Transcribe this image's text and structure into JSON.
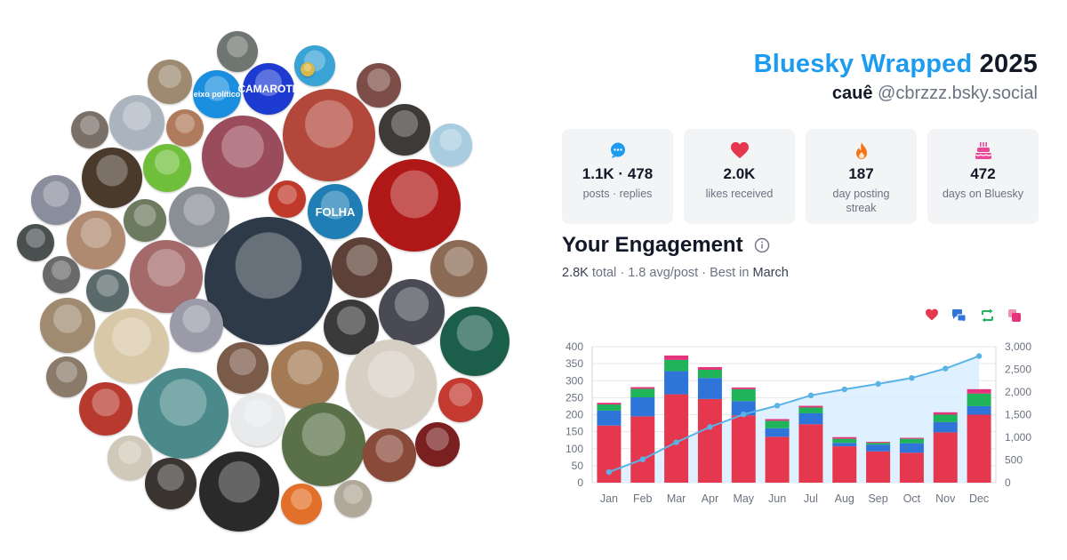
{
  "header": {
    "brand": "Bluesky Wrapped",
    "year": "2025",
    "display_name": "cauê",
    "handle": "@cbrzzz.bsky.social"
  },
  "stats": [
    {
      "icon": "chat-bubble-icon",
      "color": "#1d9bf0",
      "value": "1.1K · 478",
      "label": "posts · replies"
    },
    {
      "icon": "heart-icon",
      "color": "#e5384f",
      "value": "2.0K",
      "label": "likes received"
    },
    {
      "icon": "flame-icon",
      "color": "#f97316",
      "value": "187",
      "label": "day posting streak"
    },
    {
      "icon": "cake-icon",
      "color": "#ec4899",
      "value": "472",
      "label": "days on Bluesky"
    }
  ],
  "engagement": {
    "title": "Your Engagement",
    "total": "2.8K",
    "total_label": "total",
    "sep1": "·",
    "avg": "1.8 avg/post",
    "sep2": "·",
    "best_prefix": "Best in",
    "best_month": "March"
  },
  "legend": [
    {
      "icon": "heart-icon",
      "color": "#e5384f"
    },
    {
      "icon": "reply-icon",
      "color": "#2f74d9"
    },
    {
      "icon": "repost-icon",
      "color": "#1fb45a"
    },
    {
      "icon": "quote-icon",
      "color": "#e5347c"
    }
  ],
  "avatars": [
    {
      "label": "",
      "bg": "#6f7672",
      "fg": "#ffffff"
    },
    {
      "label": "",
      "bg": "#3aa3d6",
      "fg": "#ffffff"
    },
    {
      "label": "",
      "bg": "#9d8a70",
      "fg": "#ffffff"
    },
    {
      "label": "eixo político",
      "bg": "#1a8fe0",
      "fg": "#ffffff"
    },
    {
      "label": "CAMAROTE",
      "bg": "#1d3bd1",
      "fg": "#ffffff"
    },
    {
      "label": "",
      "bg": "#7d4e48",
      "fg": "#ffffff"
    },
    {
      "label": "",
      "bg": "#7a7068",
      "fg": "#ffffff"
    },
    {
      "label": "",
      "bg": "#aab4bf",
      "fg": "#ffffff"
    },
    {
      "label": "",
      "bg": "#b07a5c",
      "fg": "#ffffff"
    },
    {
      "label": "",
      "bg": "#b3473a",
      "fg": "#ffffff"
    },
    {
      "label": "",
      "bg": "#3d3a38",
      "fg": "#ffffff"
    },
    {
      "label": "",
      "bg": "#a9cde0",
      "fg": "#ffffff"
    },
    {
      "label": "",
      "bg": "#9a4b5c",
      "fg": "#ffffff"
    },
    {
      "label": "",
      "bg": "#4a3a2c",
      "fg": "#ffffff"
    },
    {
      "label": "",
      "bg": "#6fbf3a",
      "fg": "#ffffff"
    },
    {
      "label": "",
      "bg": "#b01818",
      "fg": "#ffffff"
    },
    {
      "label": "",
      "bg": "#8a8d9c",
      "fg": "#ffffff"
    },
    {
      "label": "",
      "bg": "#6c7a60",
      "fg": "#ffffff"
    },
    {
      "label": "",
      "bg": "#c0392b",
      "fg": "#ffffff"
    },
    {
      "label": "",
      "bg": "#8a8f96",
      "fg": "#ffffff"
    },
    {
      "label": "FOLHA",
      "bg": "#1f7fb5",
      "fg": "#ffffff"
    },
    {
      "label": "",
      "bg": "#b08a70",
      "fg": "#ffffff"
    },
    {
      "label": "",
      "bg": "#4a5050",
      "fg": "#ffffff"
    },
    {
      "label": "",
      "bg": "#5d4037",
      "fg": "#ffffff"
    },
    {
      "label": "",
      "bg": "#a46a6a",
      "fg": "#ffffff"
    },
    {
      "label": "",
      "bg": "#2e3a47",
      "fg": "#ffffff"
    },
    {
      "label": "",
      "bg": "#8b6b55",
      "fg": "#ffffff"
    },
    {
      "label": "",
      "bg": "#6a6a6a",
      "fg": "#ffffff"
    },
    {
      "label": "",
      "bg": "#5a6a6a",
      "fg": "#ffffff"
    },
    {
      "label": "",
      "bg": "#4a4a55",
      "fg": "#ffffff"
    },
    {
      "label": "",
      "bg": "#a08a70",
      "fg": "#ffffff"
    },
    {
      "label": "",
      "bg": "#d8c8a8",
      "fg": "#ffffff"
    },
    {
      "label": "",
      "bg": "#9a9aa8",
      "fg": "#ffffff"
    },
    {
      "label": "",
      "bg": "#3a3a3a",
      "fg": "#ffffff"
    },
    {
      "label": "",
      "bg": "#1b5e4a",
      "fg": "#ffffff"
    },
    {
      "label": "",
      "bg": "#7a5a48",
      "fg": "#ffffff"
    },
    {
      "label": "",
      "bg": "#a47a55",
      "fg": "#ffffff"
    },
    {
      "label": "",
      "bg": "#d8cfc4",
      "fg": "#ffffff"
    },
    {
      "label": "",
      "bg": "#8a7a6a",
      "fg": "#ffffff"
    },
    {
      "label": "",
      "bg": "#b83a2e",
      "fg": "#ffffff"
    },
    {
      "label": "",
      "bg": "#4a8a8a",
      "fg": "#ffffff"
    },
    {
      "label": "",
      "bg": "#e8eaec",
      "fg": "#ffffff"
    },
    {
      "label": "",
      "bg": "#5a7048",
      "fg": "#ffffff"
    },
    {
      "label": "",
      "bg": "#c43a30",
      "fg": "#ffffff"
    },
    {
      "label": "",
      "bg": "#d0c8b8",
      "fg": "#ffffff"
    },
    {
      "label": "",
      "bg": "#8a4a3a",
      "fg": "#ffffff"
    },
    {
      "label": "",
      "bg": "#7a2020",
      "fg": "#ffffff"
    },
    {
      "label": "",
      "bg": "#3a3530",
      "fg": "#ffffff"
    },
    {
      "label": "",
      "bg": "#2a2a2a",
      "fg": "#ffffff"
    },
    {
      "label": "",
      "bg": "#e3702a",
      "fg": "#ffffff"
    },
    {
      "label": "",
      "bg": "#b0a898",
      "fg": "#ffffff"
    },
    {
      "label": "",
      "bg": "#a08f7a",
      "fg": "#ffffff"
    },
    {
      "label": "",
      "bg": "#d8b84a",
      "fg": "#ffffff"
    }
  ],
  "chart_data": {
    "type": "bar",
    "stacked": true,
    "categories": [
      "Jan",
      "Feb",
      "Mar",
      "Apr",
      "May",
      "Jun",
      "Jul",
      "Aug",
      "Sep",
      "Oct",
      "Nov",
      "Dec"
    ],
    "series": [
      {
        "color": "#e5384f",
        "values": [
          168,
          195,
          260,
          246,
          198,
          135,
          172,
          107,
          92,
          88,
          148,
          200
        ]
      },
      {
        "color": "#2f74d9",
        "values": [
          44,
          56,
          68,
          62,
          42,
          25,
          32,
          10,
          20,
          28,
          30,
          25
        ]
      },
      {
        "color": "#1fb45a",
        "values": [
          18,
          25,
          33,
          24,
          35,
          22,
          17,
          12,
          5,
          13,
          22,
          37
        ]
      },
      {
        "color": "#e5347c",
        "values": [
          5,
          5,
          13,
          8,
          5,
          5,
          5,
          5,
          3,
          3,
          7,
          13
        ]
      }
    ],
    "line": {
      "color": "#5ab3e6",
      "fill": "#d9efff",
      "values": [
        235,
        515,
        890,
        1228,
        1506,
        1699,
        1925,
        2059,
        2178,
        2310,
        2517,
        2792
      ]
    },
    "left_axis": {
      "ylim": [
        0,
        400
      ],
      "ticks": [
        "0",
        "50",
        "100",
        "150",
        "200",
        "250",
        "300",
        "350",
        "400"
      ]
    },
    "right_axis": {
      "ylim": [
        0,
        3000
      ],
      "ticks": [
        "0",
        "500",
        "1,000",
        "1,500",
        "2,000",
        "2,500",
        "3,000"
      ]
    },
    "grid": true
  }
}
